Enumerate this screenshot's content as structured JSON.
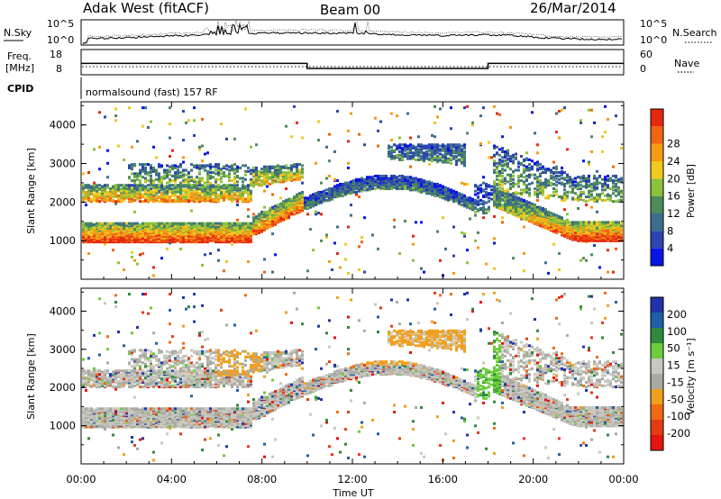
{
  "header": {
    "radar": "Adak West (fitACF)",
    "beam": "Beam 00",
    "date": "26/Mar/2014"
  },
  "panels": {
    "nsky_label": "N.Sky",
    "nsearch_label": "N.Search",
    "noise_ticks": [
      "10^5",
      "10^0"
    ],
    "freq_label_1": "Freq.",
    "freq_label_2": "[MHz]",
    "freq_ticks": [
      "18",
      "8"
    ],
    "nave_label": "Nave",
    "nave_ticks": [
      "60",
      "0"
    ],
    "cpid_label": "CPID",
    "cpid_text": "normalsound (fast) 157 RF"
  },
  "colors": {
    "power": [
      "#0a14e6",
      "#2e44b0",
      "#3c6e8c",
      "#4e8a5a",
      "#8cc23c",
      "#f0c81e",
      "#f59a14",
      "#f06414",
      "#e6280f"
    ],
    "velocity": [
      "#2233aa",
      "#1f5fa8",
      "#2e8a3c",
      "#6ccc3c",
      "#c8c8c0",
      "#aaaaa4",
      "#f0a01e",
      "#f06a14",
      "#e63c14",
      "#e6140f"
    ]
  },
  "chart_data": [
    {
      "type": "heatmap",
      "title": "Power",
      "xlabel": "Time UT",
      "ylabel": "Slant Range [km]",
      "x_ticks": [
        "00:00",
        "04:00",
        "08:00",
        "12:00",
        "16:00",
        "20:00",
        "00:00"
      ],
      "y_ticks": [
        1000,
        2000,
        3000,
        4000
      ],
      "ylim": [
        0,
        4600
      ],
      "colorbar_label": "Power [dB]",
      "colorbar_ticks": [
        4,
        8,
        12,
        16,
        20,
        24,
        28
      ]
    },
    {
      "type": "heatmap",
      "title": "Velocity",
      "xlabel": "Time UT",
      "ylabel": "Slant Range [km]",
      "x_ticks": [
        "00:00",
        "04:00",
        "08:00",
        "12:00",
        "16:00",
        "20:00",
        "00:00"
      ],
      "y_ticks": [
        1000,
        2000,
        3000,
        4000
      ],
      "ylim": [
        0,
        4600
      ],
      "colorbar_label": "Velocity [m s⁻¹]",
      "colorbar_ticks": [
        200,
        100,
        50,
        15,
        -15,
        -50,
        -100,
        -200
      ]
    },
    {
      "type": "line",
      "title": "Freq / Nave",
      "x_hours": [
        0,
        10,
        10,
        18,
        18,
        24
      ],
      "freq_mhz": [
        12.5,
        12.5,
        10.5,
        10.5,
        12.5,
        12.5
      ]
    }
  ]
}
